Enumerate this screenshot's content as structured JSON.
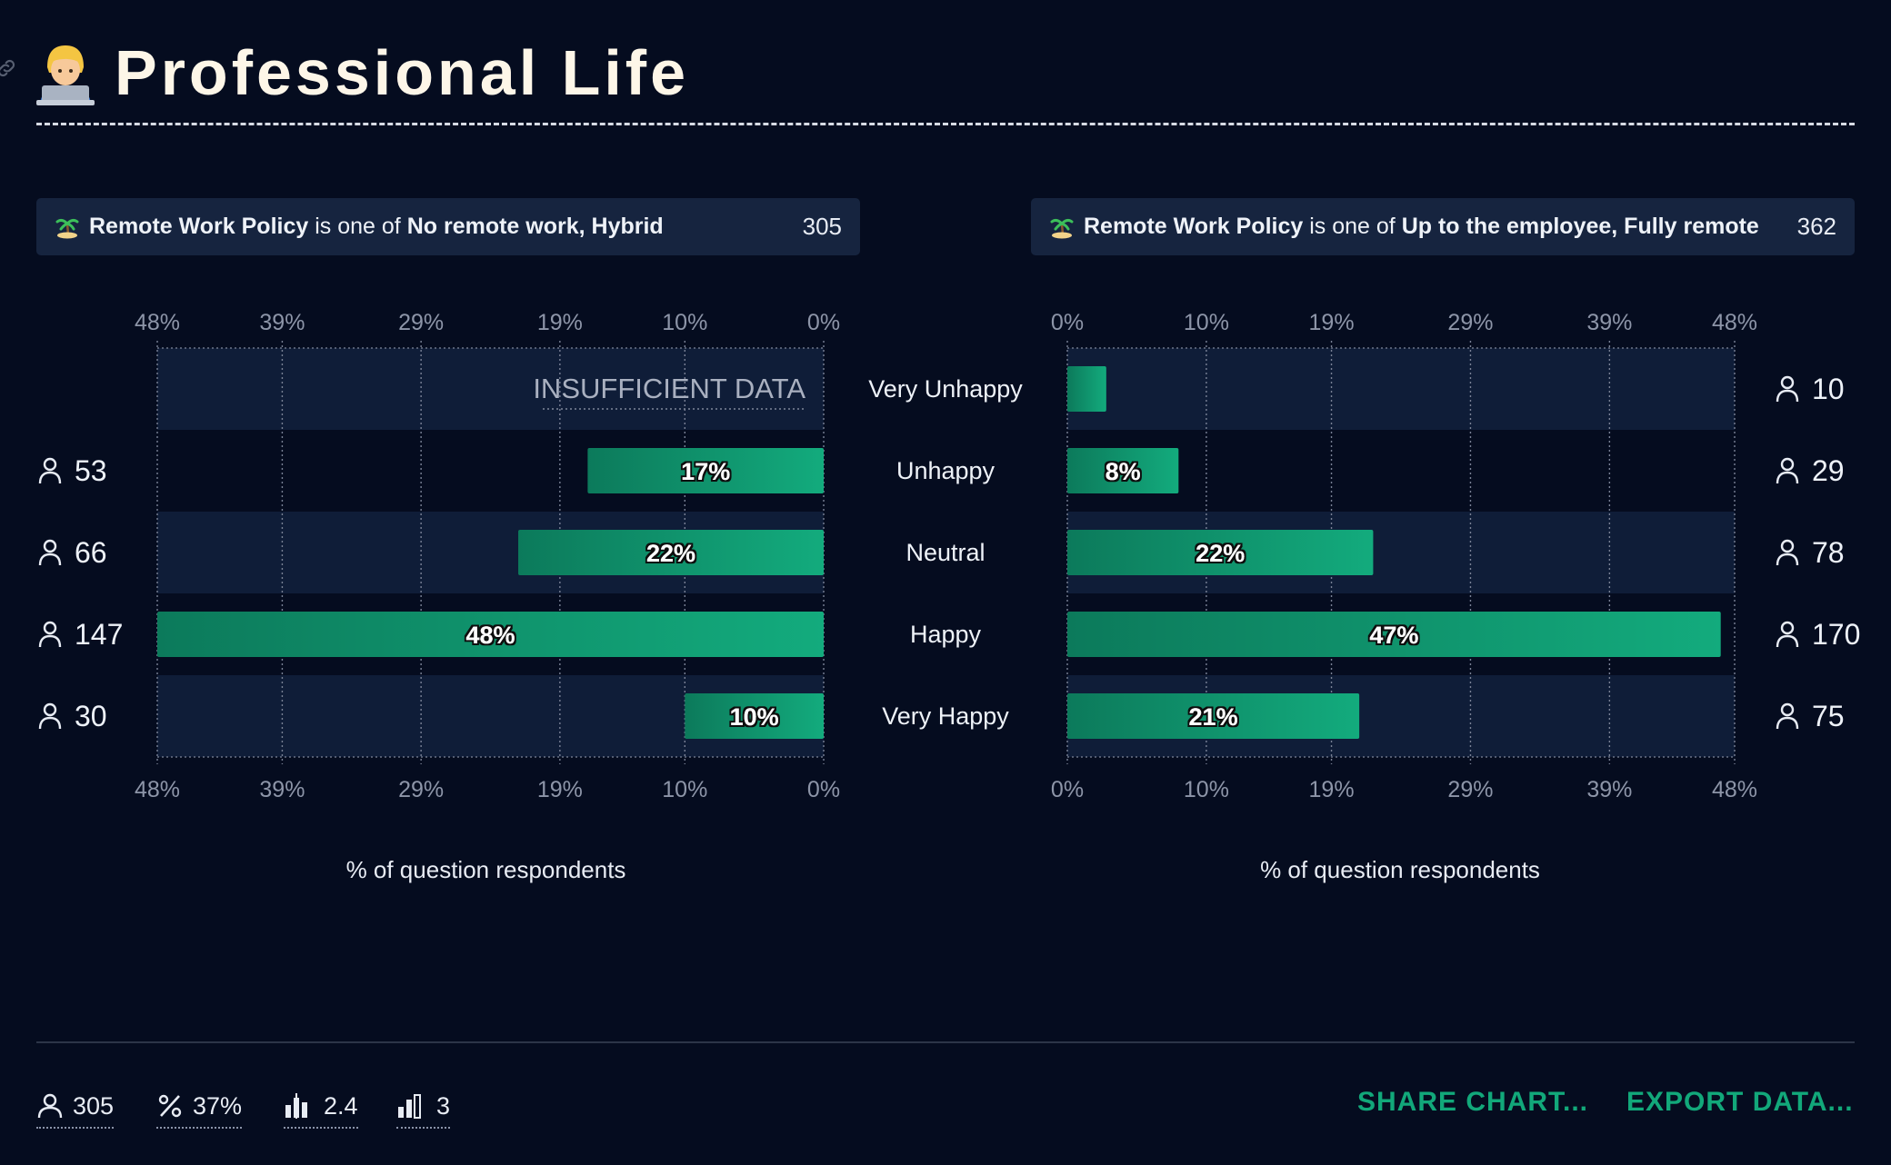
{
  "page": {
    "title": "Professional Life"
  },
  "filters": {
    "left": {
      "field": "Remote Work Policy",
      "connector": "is one of",
      "values": "No remote work, Hybrid",
      "count": "305"
    },
    "right": {
      "field": "Remote Work Policy",
      "connector": "is one of",
      "values": "Up to the employee, Fully remote",
      "count": "362"
    }
  },
  "chart_data": {
    "type": "bar",
    "orientation": "horizontal-diverging",
    "categories": [
      "Very Unhappy",
      "Unhappy",
      "Neutral",
      "Happy",
      "Very Happy"
    ],
    "axis_ticks": [
      "0%",
      "10%",
      "19%",
      "29%",
      "39%",
      "48%"
    ],
    "xlim": [
      0,
      48
    ],
    "grid": true,
    "xlabel": "% of question respondents",
    "insufficient_label": "INSUFFICIENT DATA",
    "series": [
      {
        "side": "left",
        "percent": [
          null,
          17,
          22,
          48,
          10
        ],
        "counts": [
          null,
          53,
          66,
          147,
          30
        ],
        "labels": [
          "",
          "17%",
          "22%",
          "48%",
          "10%"
        ],
        "count_labels": [
          "",
          "53",
          "66",
          "147",
          "30"
        ]
      },
      {
        "side": "right",
        "percent": [
          2.8,
          8,
          22,
          47,
          21
        ],
        "counts": [
          10,
          29,
          78,
          170,
          75
        ],
        "labels": [
          "",
          "8%",
          "22%",
          "47%",
          "21%"
        ],
        "count_labels": [
          "10",
          "29",
          "78",
          "170",
          "75"
        ]
      }
    ]
  },
  "colors": {
    "background": "#050c1f",
    "band": "#0f1d38",
    "bar_light": "#13ab7d",
    "bar_dark": "#0c7a5b",
    "accent": "#12a87a"
  },
  "footer": {
    "stats": [
      {
        "icon": "respondents-icon",
        "value": "305"
      },
      {
        "icon": "percent-icon",
        "value": "37%"
      },
      {
        "icon": "average-icon",
        "value": "2.4"
      },
      {
        "icon": "median-icon",
        "value": "3"
      }
    ],
    "share_label": "SHARE CHART...",
    "export_label": "EXPORT DATA..."
  }
}
